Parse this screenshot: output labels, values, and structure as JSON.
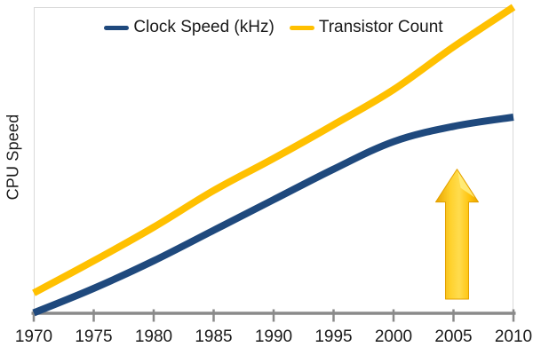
{
  "chart_data": {
    "type": "line",
    "title": "",
    "ylabel": "CPU Speed",
    "xlabel": "",
    "x": [
      1970,
      1975,
      1980,
      1985,
      1990,
      1995,
      2000,
      2005,
      2010
    ],
    "x_tick_labels": [
      "1970",
      "1975",
      "1980",
      "1985",
      "1990",
      "1995",
      "2000",
      "2005",
      "2010"
    ],
    "xlim": [
      1970,
      2010
    ],
    "ylim": [
      0,
      100
    ],
    "y_tick_labels": [],
    "grid": false,
    "legend_position": "top-center",
    "series": [
      {
        "name": "Clock Speed (kHz)",
        "color": "#1F497D",
        "values": [
          0,
          8,
          17,
          27,
          37,
          47,
          56,
          61,
          64
        ],
        "shape": "flattens after 2000"
      },
      {
        "name": "Transistor Count",
        "color": "#FFC000",
        "values": [
          6.5,
          17,
          28,
          40,
          50.5,
          61.5,
          73,
          87,
          100
        ],
        "shape": "keeps rising to top right"
      }
    ],
    "annotations": [
      {
        "type": "block-arrow-up",
        "x": 2005.3,
        "value_from": 4.5,
        "value_to": 47,
        "color": "#FFC000"
      }
    ]
  },
  "legend": {
    "items": [
      {
        "label": "Clock Speed (kHz)",
        "color": "#1F497D"
      },
      {
        "label": "Transistor Count",
        "color": "#FFC000"
      }
    ]
  },
  "colors": {
    "series_blue": "#1F497D",
    "series_gold": "#FFC000",
    "axis_line": "#8A8A8A",
    "plot_border": "#D9D9D9",
    "text": "#1a1a1a",
    "background": "#FFFFFF",
    "arrow_dark": "#E8A400",
    "arrow_light": "#FFDC4E",
    "arrow_highlight": "#FFEE82"
  }
}
